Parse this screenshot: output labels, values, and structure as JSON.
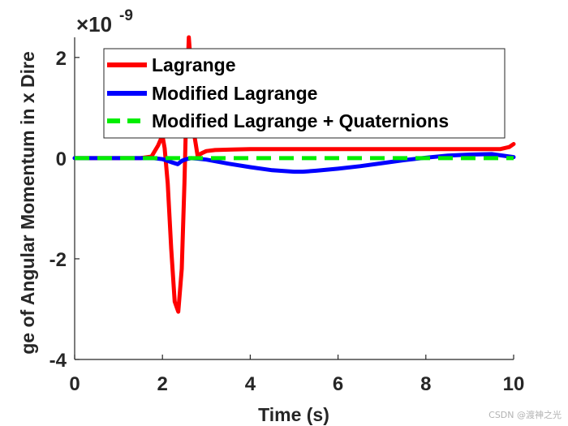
{
  "chart_data": {
    "type": "line",
    "title": "",
    "xlabel": "Time (s)",
    "ylabel": "ge of Angular Momentum in x Dire",
    "y_multiplier": {
      "base": "×10",
      "exponent": "-9"
    },
    "xlim": [
      0,
      10
    ],
    "ylim": [
      -4,
      2.4
    ],
    "xticks": [
      0,
      2,
      4,
      6,
      8,
      10
    ],
    "xtick_labels": [
      "0",
      "2",
      "4",
      "6",
      "8",
      "10"
    ],
    "yticks": [
      -4,
      -2,
      0,
      2
    ],
    "ytick_labels": [
      "-4",
      "-2",
      "0",
      "2"
    ],
    "grid": false,
    "legend_position": "top-right",
    "series": [
      {
        "name": "Lagrange",
        "color": "#ff0000",
        "style": "solid",
        "x": [
          0,
          1.5,
          1.75,
          1.9,
          2.0,
          2.05,
          2.12,
          2.2,
          2.28,
          2.36,
          2.44,
          2.5,
          2.55,
          2.6,
          2.65,
          2.7,
          2.8,
          2.9,
          3.0,
          3.2,
          3.6,
          4.0,
          5.0,
          6.0,
          7.0,
          8.0,
          9.0,
          9.7,
          9.9,
          10.0
        ],
        "y": [
          0,
          0,
          0.03,
          0.25,
          0.45,
          0.2,
          -0.5,
          -1.8,
          -2.85,
          -3.05,
          -2.2,
          -0.5,
          1.2,
          2.4,
          1.8,
          0.6,
          0.05,
          0.1,
          0.14,
          0.16,
          0.17,
          0.18,
          0.18,
          0.18,
          0.18,
          0.18,
          0.18,
          0.18,
          0.22,
          0.28
        ]
      },
      {
        "name": "Modified Lagrange",
        "color": "#0000ff",
        "style": "solid",
        "x": [
          0,
          1.8,
          2.0,
          2.2,
          2.35,
          2.45,
          2.55,
          2.65,
          2.8,
          3.0,
          3.5,
          4.0,
          4.5,
          5.0,
          5.2,
          5.5,
          6.0,
          6.5,
          7.0,
          7.5,
          8.0,
          8.5,
          9.0,
          9.5,
          10.0
        ],
        "y": [
          0,
          0,
          -0.02,
          -0.08,
          -0.12,
          -0.05,
          -0.02,
          0.0,
          -0.01,
          -0.03,
          -0.11,
          -0.18,
          -0.24,
          -0.27,
          -0.27,
          -0.25,
          -0.21,
          -0.16,
          -0.1,
          -0.04,
          0.01,
          0.05,
          0.07,
          0.08,
          0.02
        ]
      },
      {
        "name": "Modified Lagrange + Quaternions",
        "color": "#00ee00",
        "style": "dashed",
        "x": [
          0,
          10
        ],
        "y": [
          0,
          0
        ]
      }
    ]
  },
  "watermark": "CSDN @渡神之光"
}
